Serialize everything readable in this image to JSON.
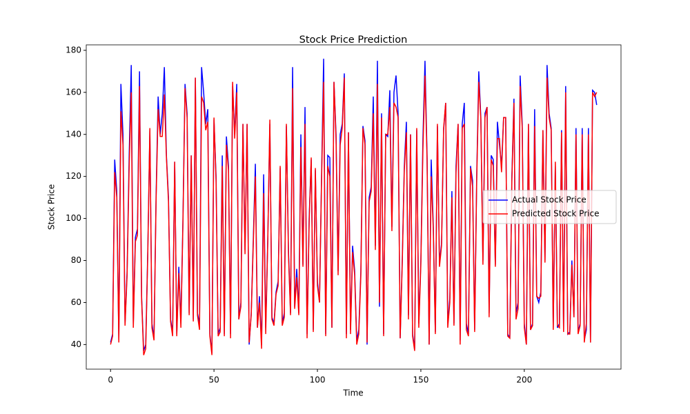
{
  "chart_data": {
    "type": "line",
    "title": "Stock Price Prediction",
    "x_label": "Time",
    "y_label": "Stock Price",
    "x": [
      0,
      1,
      2,
      3,
      4,
      5,
      6,
      7,
      8,
      9,
      10,
      11,
      12,
      13,
      14,
      15,
      16,
      17,
      18,
      19,
      20,
      21,
      22,
      23,
      24,
      25,
      26,
      27,
      28,
      29,
      30,
      31,
      32,
      33,
      34,
      35,
      36,
      37,
      38,
      39,
      40,
      41,
      42,
      43,
      44,
      45,
      46,
      47,
      48,
      49,
      50,
      51,
      52,
      53,
      54,
      55,
      56,
      57,
      58,
      59,
      60,
      61,
      62,
      63,
      64,
      65,
      66,
      67,
      68,
      69,
      70,
      71,
      72,
      73,
      74,
      75,
      76,
      77,
      78,
      79,
      80,
      81,
      82,
      83,
      84,
      85,
      86,
      87,
      88,
      89,
      90,
      91,
      92,
      93,
      94,
      95,
      96,
      97,
      98,
      99,
      100,
      101,
      102,
      103,
      104,
      105,
      106,
      107,
      108,
      109,
      110,
      111,
      112,
      113,
      114,
      115,
      116,
      117,
      118,
      119,
      120,
      121,
      122,
      123,
      124,
      125,
      126,
      127,
      128,
      129,
      130,
      131,
      132,
      133,
      134,
      135,
      136,
      137,
      138,
      139,
      140,
      141,
      142,
      143,
      144,
      145,
      146,
      147,
      148,
      149,
      150,
      151,
      152,
      153,
      154,
      155,
      156,
      157,
      158,
      159,
      160,
      161,
      162,
      163,
      164,
      165,
      166,
      167,
      168,
      169,
      170,
      171,
      172,
      173,
      174,
      175,
      176,
      177,
      178,
      179,
      180,
      181,
      182,
      183,
      184,
      185,
      186,
      187,
      188,
      189,
      190,
      191,
      192,
      193,
      194,
      195,
      196,
      197,
      198,
      199,
      200,
      201,
      202,
      203,
      204,
      205,
      206,
      207,
      208,
      209,
      210,
      211,
      212,
      213,
      214,
      215,
      216,
      217,
      218,
      219,
      220,
      221,
      222,
      223,
      224,
      225,
      226,
      227,
      228,
      229,
      230,
      231,
      232,
      233,
      234,
      235
    ],
    "series": [
      {
        "name": "Actual Stock Price",
        "color": "#0000ff",
        "values": [
          41,
          45,
          128,
          113,
          42,
          164,
          140,
          50,
          75,
          130,
          173,
          50,
          91,
          95,
          170,
          63,
          37,
          40,
          85,
          142,
          50,
          43,
          110,
          158,
          140,
          150,
          172,
          130,
          110,
          52,
          46,
          127,
          45,
          77,
          50,
          100,
          164,
          150,
          55,
          130,
          52,
          167,
          55,
          50,
          172,
          160,
          145,
          152,
          45,
          36,
          147,
          120,
          45,
          48,
          130,
          45,
          139,
          125,
          45,
          163,
          140,
          164,
          52,
          60,
          145,
          85,
          145,
          40,
          55,
          90,
          126,
          48,
          63,
          40,
          121,
          48,
          90,
          145,
          53,
          50,
          65,
          70,
          124,
          50,
          55,
          144,
          85,
          55,
          172,
          58,
          76,
          55,
          140,
          78,
          153,
          45,
          100,
          128,
          47,
          123,
          70,
          60,
          120,
          176,
          45,
          130,
          129,
          48,
          165,
          140,
          75,
          140,
          145,
          169,
          45,
          141,
          47,
          87,
          75,
          42,
          47,
          75,
          144,
          137,
          40,
          110,
          115,
          158,
          87,
          175,
          58,
          150,
          45,
          140,
          139,
          161,
          96,
          160,
          168,
          150,
          43,
          80,
          125,
          146,
          54,
          140,
          45,
          38,
          142,
          50,
          80,
          138,
          175,
          130,
          40,
          128,
          97,
          46,
          144,
          79,
          88,
          142,
          155,
          50,
          62,
          113,
          50,
          125,
          145,
          42,
          145,
          155,
          50,
          45,
          125,
          118,
          47,
          120,
          170,
          148,
          80,
          150,
          153,
          55,
          130,
          128,
          78,
          146,
          135,
          125,
          148,
          148,
          45,
          43,
          120,
          157,
          55,
          60,
          168,
          145,
          50,
          40,
          145,
          47,
          50,
          152,
          63,
          60,
          65,
          142,
          80,
          173,
          150,
          143,
          48,
          125,
          48,
          50,
          142,
          47,
          163,
          45,
          46,
          80,
          53,
          143,
          46,
          50,
          143,
          42,
          47,
          143,
          41,
          161,
          160,
          154
        ]
      },
      {
        "name": "Predicted Stock Price",
        "color": "#ff0000",
        "values": [
          40,
          44,
          122,
          110,
          41,
          151,
          135,
          49,
          73,
          125,
          160,
          48,
          89,
          92,
          163,
          62,
          35,
          38,
          83,
          143,
          48,
          42,
          108,
          152,
          139,
          139,
          159,
          129,
          108,
          51,
          44,
          127,
          44,
          74,
          48,
          98,
          162,
          148,
          54,
          130,
          51,
          167,
          54,
          47,
          158,
          155,
          142,
          146,
          44,
          35,
          148,
          118,
          44,
          46,
          125,
          44,
          135,
          123,
          43,
          165,
          138,
          160,
          52,
          58,
          145,
          83,
          145,
          41,
          54,
          88,
          120,
          48,
          60,
          38,
          112,
          45,
          89,
          147,
          52,
          49,
          64,
          68,
          125,
          49,
          53,
          145,
          83,
          54,
          162,
          57,
          72,
          54,
          134,
          77,
          145,
          43,
          98,
          129,
          46,
          124,
          68,
          60,
          118,
          165,
          44,
          125,
          120,
          48,
          165,
          138,
          73,
          135,
          143,
          167,
          43,
          141,
          45,
          84,
          73,
          40,
          45,
          73,
          143,
          135,
          41,
          108,
          113,
          150,
          85,
          164,
          60,
          148,
          44,
          140,
          140,
          153,
          94,
          155,
          153,
          148,
          43,
          78,
          123,
          141,
          52,
          140,
          44,
          37,
          143,
          48,
          78,
          133,
          168,
          128,
          40,
          120,
          95,
          45,
          145,
          77,
          87,
          143,
          155,
          48,
          60,
          110,
          49,
          122,
          145,
          40,
          143,
          145,
          47,
          44,
          124,
          115,
          46,
          118,
          165,
          147,
          78,
          148,
          153,
          53,
          128,
          125,
          77,
          138,
          138,
          122,
          148,
          148,
          44,
          43,
          118,
          155,
          52,
          57,
          163,
          143,
          48,
          40,
          145,
          47,
          49,
          144,
          63,
          62,
          63,
          142,
          79,
          167,
          148,
          142,
          47,
          127,
          49,
          48,
          141,
          46,
          160,
          45,
          45,
          78,
          53,
          140,
          45,
          49,
          140,
          41,
          50,
          140,
          41,
          160,
          158,
          160
        ]
      }
    ],
    "xlim": [
      -11.75,
      246.75
    ],
    "ylim": [
      28.3,
      182.6
    ],
    "xticks": [
      0,
      50,
      100,
      150,
      200
    ],
    "yticks": [
      40,
      60,
      80,
      100,
      120,
      140,
      160,
      180
    ],
    "legend": "center right"
  }
}
